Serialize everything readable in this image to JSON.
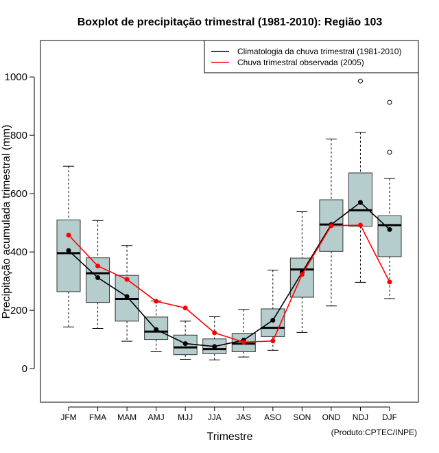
{
  "chart_data": {
    "type": "boxplot",
    "title": "Boxplot de precipitação trimestral (1981-2010): Região 103",
    "xlabel": "Trimestre",
    "ylabel": "Precipitação acumulada trimestral (mm)",
    "ylim": [
      -115,
      1125
    ],
    "yticks": [
      0,
      200,
      400,
      600,
      800,
      1000
    ],
    "categories": [
      "JFM",
      "FMA",
      "MAM",
      "AMJ",
      "MJJ",
      "JJA",
      "JAS",
      "ASO",
      "SON",
      "OND",
      "NDJ",
      "DJF"
    ],
    "boxes": [
      {
        "whisker_low": 143,
        "q1": 264,
        "median": 396,
        "q3": 510,
        "whisker_high": 694,
        "outliers": []
      },
      {
        "whisker_low": 138,
        "q1": 227,
        "median": 327,
        "q3": 380,
        "whisker_high": 508,
        "outliers": []
      },
      {
        "whisker_low": 94,
        "q1": 163,
        "median": 239,
        "q3": 320,
        "whisker_high": 422,
        "outliers": []
      },
      {
        "whisker_low": 58,
        "q1": 100,
        "median": 127,
        "q3": 177,
        "whisker_high": 232,
        "outliers": []
      },
      {
        "whisker_low": 32,
        "q1": 48,
        "median": 73,
        "q3": 115,
        "whisker_high": 163,
        "outliers": []
      },
      {
        "whisker_low": 30,
        "q1": 51,
        "median": 67,
        "q3": 102,
        "whisker_high": 178,
        "outliers": []
      },
      {
        "whisker_low": 40,
        "q1": 58,
        "median": 86,
        "q3": 121,
        "whisker_high": 203,
        "outliers": []
      },
      {
        "whisker_low": 63,
        "q1": 110,
        "median": 140,
        "q3": 205,
        "whisker_high": 338,
        "outliers": []
      },
      {
        "whisker_low": 124,
        "q1": 245,
        "median": 340,
        "q3": 379,
        "whisker_high": 538,
        "outliers": []
      },
      {
        "whisker_low": 215,
        "q1": 402,
        "median": 494,
        "q3": 579,
        "whisker_high": 787,
        "outliers": []
      },
      {
        "whisker_low": 296,
        "q1": 488,
        "median": 543,
        "q3": 671,
        "whisker_high": 810,
        "outliers": [
          986
        ]
      },
      {
        "whisker_low": 240,
        "q1": 384,
        "median": 492,
        "q3": 524,
        "whisker_high": 652,
        "outliers": [
          742,
          913
        ]
      }
    ],
    "series": [
      {
        "name": "Climatologia da chuva trimestral (1981-2010)",
        "color": "#000000",
        "values": [
          405,
          312,
          247,
          134,
          86,
          76,
          98,
          166,
          330,
          494,
          570,
          477
        ]
      },
      {
        "name": "Chuva trimestral observada (2005)",
        "color": "#ff0000",
        "values": [
          458,
          352,
          306,
          231,
          208,
          123,
          91,
          95,
          323,
          490,
          492,
          297
        ]
      }
    ],
    "box_fill": "#b5cdcd",
    "legend_position": "top-right"
  },
  "footer": {
    "credit": "(Produto:CPTEC/INPE)"
  }
}
